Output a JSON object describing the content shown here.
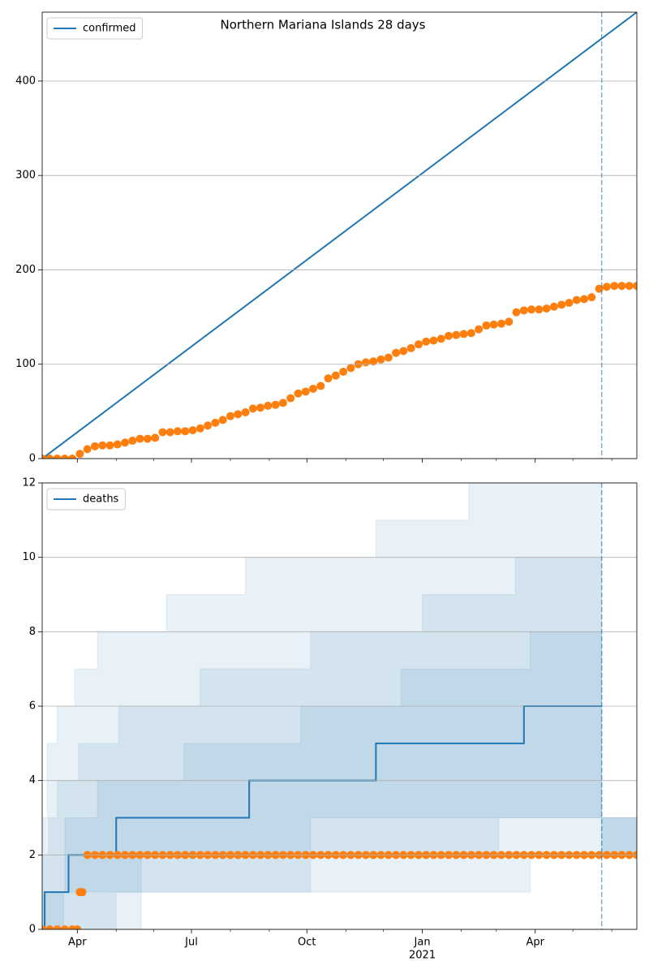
{
  "chart_data": [
    {
      "type": "line",
      "title": "Northern Mariana Islands 28 days",
      "xlim": [
        0,
        474
      ],
      "ylim": [
        0,
        473
      ],
      "yticks": [
        0,
        100,
        200,
        300,
        400
      ],
      "grid": true,
      "legend": "upper left",
      "sharex": true,
      "vline": 446,
      "series": [
        {
          "name": "confirmed",
          "type": "line",
          "color": "#1f77b4",
          "x": [
            0,
            474
          ],
          "values": [
            0,
            473
          ]
        },
        {
          "type": "scatter",
          "color": "#ff7f0e",
          "x": [
            0,
            6,
            12,
            18,
            24,
            30,
            36,
            42,
            48,
            54,
            60,
            66,
            72,
            78,
            84,
            90,
            96,
            102,
            108,
            114,
            120,
            126,
            132,
            138,
            144,
            150,
            156,
            162,
            168,
            174,
            180,
            186,
            192,
            198,
            204,
            210,
            216,
            222,
            228,
            234,
            240,
            246,
            252,
            258,
            264,
            270,
            276,
            282,
            288,
            294,
            300,
            306,
            312,
            318,
            324,
            330,
            336,
            342,
            348,
            354,
            360,
            366,
            372,
            378,
            384,
            390,
            396,
            402,
            408,
            414,
            420,
            426,
            432,
            438,
            444,
            450,
            456,
            462,
            468,
            474
          ],
          "values": [
            0,
            0,
            0,
            0,
            0,
            5,
            10,
            13,
            14,
            14,
            15,
            17,
            19,
            21,
            21,
            22,
            28,
            28,
            29,
            29,
            30,
            32,
            35,
            38,
            41,
            45,
            47,
            49,
            53,
            54,
            56,
            57,
            59,
            64,
            69,
            71,
            74,
            77,
            85,
            88,
            92,
            96,
            100,
            102,
            103,
            105,
            107,
            112,
            114,
            117,
            121,
            124,
            125,
            127,
            130,
            131,
            132,
            133,
            137,
            141,
            142,
            143,
            145,
            155,
            157,
            158,
            158,
            159,
            161,
            163,
            165,
            168,
            169,
            171,
            180,
            182,
            183,
            183,
            183,
            183
          ]
        }
      ]
    },
    {
      "type": "line",
      "xlim": [
        0,
        474
      ],
      "ylim": [
        0,
        12
      ],
      "yticks": [
        0,
        2,
        4,
        6,
        8,
        10,
        12
      ],
      "grid": true,
      "legend": "upper left",
      "vline": 446,
      "xticks": [
        {
          "value": 28,
          "label": "Apr"
        },
        {
          "value": 119,
          "label": "Jul"
        },
        {
          "value": 211,
          "label": "Oct"
        },
        {
          "value": 303,
          "label": "Jan"
        },
        {
          "value": 393,
          "label": "Apr"
        }
      ],
      "xticks_secondary": [
        {
          "value": 303,
          "label": "2021"
        }
      ],
      "xminorticks": [
        59,
        89,
        150,
        181,
        242,
        272,
        334,
        362,
        423,
        454
      ],
      "bands": [
        {
          "color": "#1f77b4",
          "alpha": 0.1,
          "x": [
            0,
            4,
            12,
            26,
            44,
            59,
            99,
            162,
            266,
            340,
            389,
            446
          ],
          "upper": [
            3,
            5,
            6,
            7,
            8,
            8,
            9,
            10,
            11,
            12,
            12,
            3
          ],
          "lower": [
            0,
            0,
            0,
            0,
            0,
            1,
            1,
            1,
            1,
            1,
            2,
            2
          ]
        },
        {
          "color": "#1f77b4",
          "alpha": 0.1,
          "x": [
            0,
            5,
            12,
            29,
            61,
            79,
            126,
            214,
            303,
            364,
            377,
            446
          ],
          "upper": [
            2,
            3,
            4,
            5,
            6,
            6,
            7,
            8,
            9,
            9,
            10,
            3
          ],
          "lower": [
            0,
            0,
            0,
            0,
            0,
            1,
            1,
            2,
            2,
            3,
            3,
            2
          ]
        },
        {
          "color": "#1f77b4",
          "alpha": 0.1,
          "x": [
            0,
            17,
            18,
            44,
            79,
            113,
            206,
            214,
            286,
            364,
            389,
            446
          ],
          "upper": [
            1,
            1,
            3,
            4,
            4,
            5,
            6,
            6,
            7,
            7,
            8,
            3
          ],
          "lower": [
            0,
            1,
            1,
            1,
            2,
            2,
            2,
            3,
            3,
            3,
            3,
            2
          ]
        }
      ],
      "series": [
        {
          "name": "deaths",
          "type": "step",
          "color": "#1f77b4",
          "x": [
            0,
            2,
            21,
            59,
            165,
            266,
            384,
            446
          ],
          "values": [
            0,
            1,
            2,
            3,
            4,
            5,
            6,
            6
          ]
        },
        {
          "type": "scatter",
          "color": "#ff7f0e",
          "x": [
            0,
            6,
            12,
            18,
            24,
            28,
            30,
            32,
            36,
            42,
            48,
            54,
            60,
            66,
            72,
            78,
            84,
            90,
            96,
            102,
            108,
            114,
            120,
            126,
            132,
            138,
            144,
            150,
            156,
            162,
            168,
            174,
            180,
            186,
            192,
            198,
            204,
            210,
            216,
            222,
            228,
            234,
            240,
            246,
            252,
            258,
            264,
            270,
            276,
            282,
            288,
            294,
            300,
            306,
            312,
            318,
            324,
            330,
            336,
            342,
            348,
            354,
            360,
            366,
            372,
            378,
            384,
            390,
            396,
            402,
            408,
            414,
            420,
            426,
            432,
            438,
            444,
            450,
            456,
            462,
            468,
            474
          ],
          "values": [
            0,
            0,
            0,
            0,
            0,
            0,
            1,
            1,
            2,
            2,
            2,
            2,
            2,
            2,
            2,
            2,
            2,
            2,
            2,
            2,
            2,
            2,
            2,
            2,
            2,
            2,
            2,
            2,
            2,
            2,
            2,
            2,
            2,
            2,
            2,
            2,
            2,
            2,
            2,
            2,
            2,
            2,
            2,
            2,
            2,
            2,
            2,
            2,
            2,
            2,
            2,
            2,
            2,
            2,
            2,
            2,
            2,
            2,
            2,
            2,
            2,
            2,
            2,
            2,
            2,
            2,
            2,
            2,
            2,
            2,
            2,
            2,
            2,
            2,
            2,
            2,
            2,
            2,
            2,
            2,
            2,
            2
          ]
        }
      ]
    }
  ]
}
